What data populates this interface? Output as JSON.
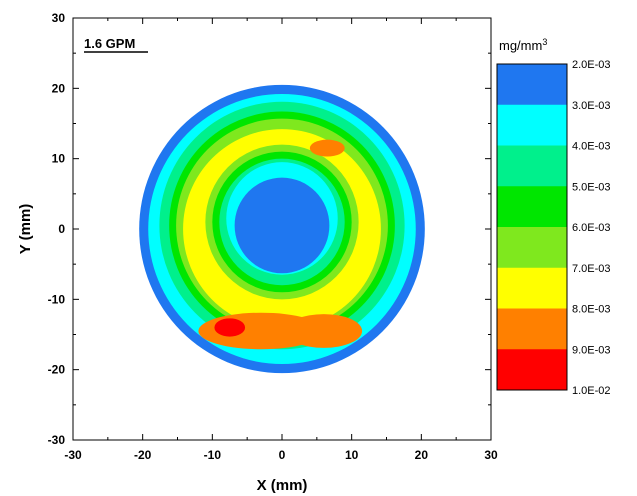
{
  "chart_data": {
    "type": "heatmap",
    "annotation": "1.6 GPM",
    "xlabel": "X (mm)",
    "ylabel": "Y (mm)",
    "xlim": [
      -30,
      30
    ],
    "ylim": [
      -30,
      30
    ],
    "x_ticks": [
      -30,
      -20,
      -10,
      0,
      10,
      20,
      30
    ],
    "y_ticks": [
      -30,
      -20,
      -10,
      0,
      10,
      20,
      30
    ],
    "x_tick_labels": [
      "-30",
      "-20",
      "-10",
      "0",
      "10",
      "20",
      "30"
    ],
    "y_tick_labels": [
      "-30",
      "-20",
      "-10",
      "0",
      "10",
      "20",
      "30"
    ],
    "colorbar": {
      "unit_base": "mg/mm",
      "unit_exp": "3",
      "levels": [
        0.002,
        0.003,
        0.004,
        0.005,
        0.006,
        0.007,
        0.008,
        0.009,
        0.01
      ],
      "level_labels": [
        "2.0E-03",
        "3.0E-03",
        "4.0E-03",
        "5.0E-03",
        "6.0E-03",
        "7.0E-03",
        "8.0E-03",
        "9.0E-03",
        "1.0E-02"
      ],
      "colors": [
        "#1f77f0",
        "#00ffff",
        "#00f08c",
        "#00e600",
        "#7fe81e",
        "#ffff00",
        "#ff8000",
        "#ff0000"
      ]
    },
    "regions": [
      {
        "level_index": 0,
        "shape": "ring",
        "cx": 0,
        "cy": 0,
        "r_outer": 20.5,
        "r_inner": 0
      },
      {
        "level_index": 1,
        "shape": "ring",
        "cx": 0,
        "cy": 0,
        "r_outer": 19.2,
        "r_inner": 0
      },
      {
        "level_index": 2,
        "shape": "ring",
        "cx": 0,
        "cy": 0.5,
        "r_outer": 17.6,
        "r_inner": 0
      },
      {
        "level_index": 3,
        "shape": "ring",
        "cx": 0,
        "cy": 0.5,
        "r_outer": 16.2,
        "r_inner": 0
      },
      {
        "level_index": 4,
        "shape": "ring",
        "cx": 0,
        "cy": 0.5,
        "r_outer": 15.2,
        "r_inner": 0
      },
      {
        "level_index": 5,
        "shape": "ring",
        "cx": 0,
        "cy": 0,
        "r_outer": 14.2,
        "r_inner": 0
      },
      {
        "level_index": 4,
        "shape": "ring",
        "cx": 0,
        "cy": 1,
        "r_outer": 11.0,
        "r_inner": 0
      },
      {
        "level_index": 3,
        "shape": "ring",
        "cx": 0,
        "cy": 1,
        "r_outer": 10.0,
        "r_inner": 0
      },
      {
        "level_index": 2,
        "shape": "ring",
        "cx": 0,
        "cy": 1,
        "r_outer": 9.0,
        "r_inner": 0
      },
      {
        "level_index": 1,
        "shape": "ring",
        "cx": 0,
        "cy": 1.5,
        "r_outer": 8.0,
        "r_inner": 0
      },
      {
        "level_index": 0,
        "shape": "ring",
        "cx": 0,
        "cy": 0.5,
        "r_outer": 6.8,
        "r_inner": 0
      },
      {
        "level_index": 6,
        "shape": "blob",
        "cx": -3,
        "cy": -14.5,
        "rx": 9,
        "ry": 2.6
      },
      {
        "level_index": 6,
        "shape": "blob",
        "cx": 6,
        "cy": -14.5,
        "rx": 5.5,
        "ry": 2.4
      },
      {
        "level_index": 7,
        "shape": "blob",
        "cx": -7.5,
        "cy": -14,
        "rx": 2.2,
        "ry": 1.3
      },
      {
        "level_index": 6,
        "shape": "blob",
        "cx": 6.5,
        "cy": 11.5,
        "rx": 2.5,
        "ry": 1.2
      }
    ]
  }
}
